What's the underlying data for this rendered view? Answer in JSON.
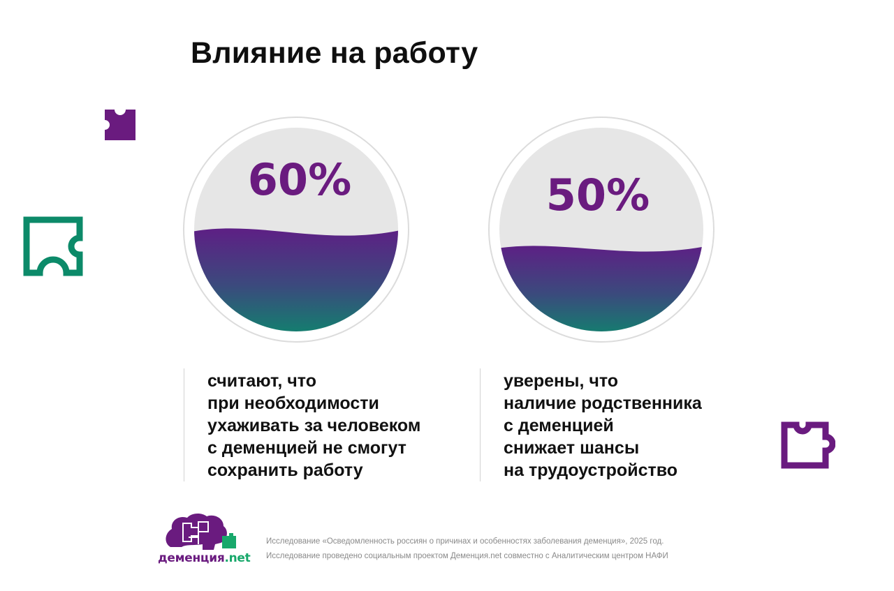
{
  "page": {
    "title": "Влияние на работу"
  },
  "colors": {
    "purple": "#6a1b7f",
    "teal": "#0c8a69",
    "gauge_bg": "#e6e6e6",
    "ring": "#dcdcdc",
    "logo_green": "#18a86b"
  },
  "stats": [
    {
      "value_label": "60%",
      "fill_fraction": 0.6,
      "text": "считают, что\nпри необходимости\nухаживать за человеком\nс деменцией не смогут\nсохранить работу"
    },
    {
      "value_label": "50%",
      "fill_fraction": 0.5,
      "text": "уверены, что\nналичие родственника\nс деменцией\nснижает шансы\nна трудоустройство"
    }
  ],
  "decorations": [
    "puzzle-piece-icon",
    "puzzle-piece-icon",
    "puzzle-piece-icon"
  ],
  "logo": {
    "name_text": "деменция",
    "suffix_text": ".net",
    "icon": "head-puzzle-icon"
  },
  "footer": {
    "line1": "Исследование «Осведомленность россиян о причинах и особенностях заболевания деменция», 2025 год.",
    "line2": "Исследование проведено социальным проектом Деменция.net совместно с Аналитическим центром НАФИ"
  }
}
